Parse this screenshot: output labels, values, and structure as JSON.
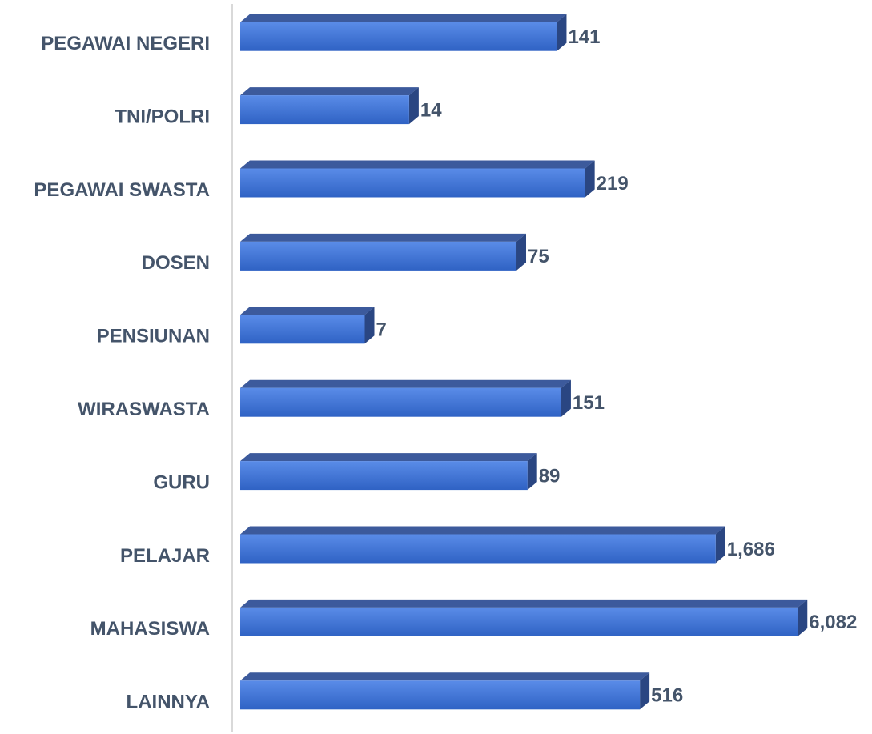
{
  "chart_data": {
    "type": "bar",
    "orientation": "horizontal",
    "categories": [
      "PEGAWAI NEGERI",
      "TNI/POLRI",
      "PEGAWAI SWASTA",
      "DOSEN",
      "PENSIUNAN",
      "WIRASWASTA",
      "GURU",
      "PELAJAR",
      "MAHASISWA",
      "LAINNYA"
    ],
    "values": [
      141,
      14,
      219,
      75,
      7,
      151,
      89,
      1686,
      6082,
      516
    ],
    "value_labels": [
      "141",
      "14",
      "219",
      "75",
      "7",
      "151",
      "89",
      "1,686",
      "6,082",
      "516"
    ],
    "color": "#3f72d6",
    "xlim": [
      1,
      10000
    ],
    "log_scale": true,
    "grid": false
  }
}
